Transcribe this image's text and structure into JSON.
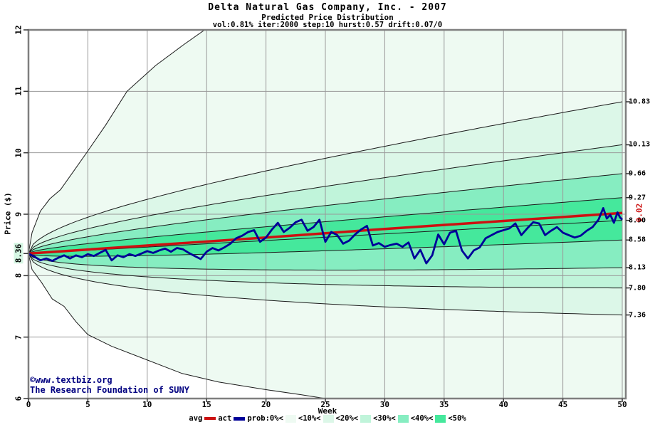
{
  "header": {
    "title": "Delta Natural Gas Company, Inc. - 2007",
    "subtitle": "Predicted Price Distribution",
    "params": "vol:0.81% iter:2000 step:10 hurst:0.57 drift:0.07/0"
  },
  "watermark": {
    "line1": "©www.textbiz.org",
    "line2": "The Research Foundation of SUNY",
    "color": "#000080"
  },
  "legend": {
    "avg_label": "avg",
    "act_label": "act",
    "prob_label": "prob:0%<",
    "thresholds": [
      "<10%<",
      "<20%<",
      "<30%<",
      "<40%<",
      "<50%"
    ],
    "avg_color": "#cc1111",
    "act_color": "#000099"
  },
  "chart_data": {
    "type": "line",
    "subtype": "monte-carlo-fan",
    "title": "Delta Natural Gas Company, Inc. - 2007",
    "xlabel": "Week",
    "ylabel": "Price ($)",
    "x_range": [
      0,
      50.3
    ],
    "y_range": [
      6,
      12
    ],
    "x_ticks": [
      0,
      5,
      10,
      15,
      20,
      25,
      30,
      35,
      40,
      45,
      50
    ],
    "y_ticks": [
      6,
      7,
      8,
      9,
      10,
      11,
      12
    ],
    "grid": true,
    "grid_color": "#999999",
    "border_color": "#7f7f7f",
    "curve_color": "#1b1b1b",
    "start_price": 8.36,
    "start_price_label": "8.36",
    "median_end": 8.9,
    "band_exponent": 0.5,
    "bands": {
      "upper_ends": [
        9.27,
        9.66,
        10.13,
        10.83
      ],
      "lower_ends": [
        8.58,
        8.13,
        7.8,
        7.36
      ],
      "max_points": [
        [
          0,
          8.36
        ],
        [
          0.3,
          8.7
        ],
        [
          1,
          9.05
        ],
        [
          1.8,
          9.25
        ],
        [
          2.7,
          9.4
        ],
        [
          3.8,
          9.7
        ],
        [
          5,
          10.03
        ],
        [
          6.5,
          10.45
        ],
        [
          8.3,
          11.0
        ],
        [
          10.7,
          11.42
        ],
        [
          13,
          11.75
        ],
        [
          15.2,
          12.05
        ],
        [
          50.3,
          16.0
        ]
      ],
      "min_points": [
        [
          0,
          8.36
        ],
        [
          0.3,
          8.1
        ],
        [
          1.1,
          7.89
        ],
        [
          2,
          7.62
        ],
        [
          3,
          7.5
        ],
        [
          4,
          7.25
        ],
        [
          5,
          7.04
        ],
        [
          7,
          6.85
        ],
        [
          10.1,
          6.62
        ],
        [
          12.9,
          6.41
        ],
        [
          16,
          6.27
        ],
        [
          19.8,
          6.15
        ],
        [
          23,
          6.06
        ],
        [
          26,
          5.97
        ],
        [
          50.3,
          5.3
        ]
      ],
      "colors_outer_to_inner": [
        "#eefaf2",
        "#dcf7e8",
        "#c0f4da",
        "#86edc1",
        "#45e89c"
      ],
      "right_labels": [
        10.83,
        10.13,
        9.66,
        9.27,
        8.9,
        8.58,
        8.13,
        7.8,
        7.36
      ]
    },
    "avg": {
      "label": "avg",
      "color": "#cc1111",
      "end_label": "9.02",
      "points": [
        [
          0,
          8.36
        ],
        [
          10,
          8.49
        ],
        [
          20,
          8.62
        ],
        [
          30,
          8.76
        ],
        [
          40,
          8.89
        ],
        [
          50,
          9.02
        ]
      ]
    },
    "act": {
      "label": "act",
      "color": "#000099",
      "points": [
        [
          0,
          8.36
        ],
        [
          0.5,
          8.31
        ],
        [
          1,
          8.25
        ],
        [
          1.5,
          8.28
        ],
        [
          2,
          8.24
        ],
        [
          2.5,
          8.29
        ],
        [
          3,
          8.33
        ],
        [
          3.5,
          8.28
        ],
        [
          4,
          8.33
        ],
        [
          4.5,
          8.3
        ],
        [
          5,
          8.35
        ],
        [
          5.5,
          8.32
        ],
        [
          6,
          8.37
        ],
        [
          6.5,
          8.42
        ],
        [
          7,
          8.25
        ],
        [
          7.5,
          8.33
        ],
        [
          8,
          8.3
        ],
        [
          8.5,
          8.35
        ],
        [
          9,
          8.32
        ],
        [
          9.5,
          8.36
        ],
        [
          10,
          8.4
        ],
        [
          10.5,
          8.37
        ],
        [
          11,
          8.41
        ],
        [
          11.5,
          8.44
        ],
        [
          12,
          8.39
        ],
        [
          12.5,
          8.45
        ],
        [
          13,
          8.43
        ],
        [
          13.5,
          8.37
        ],
        [
          14,
          8.32
        ],
        [
          14.5,
          8.27
        ],
        [
          15,
          8.39
        ],
        [
          15.5,
          8.45
        ],
        [
          16,
          8.41
        ],
        [
          16.5,
          8.46
        ],
        [
          17,
          8.52
        ],
        [
          17.5,
          8.61
        ],
        [
          18,
          8.65
        ],
        [
          18.5,
          8.71
        ],
        [
          19,
          8.74
        ],
        [
          19.5,
          8.55
        ],
        [
          20,
          8.62
        ],
        [
          20.5,
          8.75
        ],
        [
          21,
          8.86
        ],
        [
          21.5,
          8.71
        ],
        [
          22,
          8.78
        ],
        [
          22.5,
          8.87
        ],
        [
          23,
          8.91
        ],
        [
          23.5,
          8.73
        ],
        [
          24,
          8.79
        ],
        [
          24.5,
          8.91
        ],
        [
          25,
          8.55
        ],
        [
          25.5,
          8.71
        ],
        [
          26,
          8.66
        ],
        [
          26.5,
          8.52
        ],
        [
          27,
          8.57
        ],
        [
          27.5,
          8.67
        ],
        [
          28,
          8.75
        ],
        [
          28.5,
          8.81
        ],
        [
          29,
          8.49
        ],
        [
          29.5,
          8.53
        ],
        [
          30,
          8.47
        ],
        [
          30.5,
          8.5
        ],
        [
          31,
          8.52
        ],
        [
          31.5,
          8.47
        ],
        [
          32,
          8.54
        ],
        [
          32.5,
          8.28
        ],
        [
          33,
          8.42
        ],
        [
          33.5,
          8.2
        ],
        [
          34,
          8.33
        ],
        [
          34.5,
          8.67
        ],
        [
          35,
          8.51
        ],
        [
          35.5,
          8.7
        ],
        [
          36,
          8.73
        ],
        [
          36.5,
          8.41
        ],
        [
          37,
          8.28
        ],
        [
          37.5,
          8.41
        ],
        [
          38,
          8.46
        ],
        [
          38.5,
          8.61
        ],
        [
          39,
          8.66
        ],
        [
          39.5,
          8.71
        ],
        [
          40,
          8.74
        ],
        [
          40.5,
          8.77
        ],
        [
          41,
          8.85
        ],
        [
          41.5,
          8.66
        ],
        [
          42,
          8.77
        ],
        [
          42.5,
          8.87
        ],
        [
          43,
          8.85
        ],
        [
          43.5,
          8.66
        ],
        [
          44,
          8.73
        ],
        [
          44.5,
          8.79
        ],
        [
          45,
          8.7
        ],
        [
          45.5,
          8.66
        ],
        [
          46,
          8.62
        ],
        [
          46.5,
          8.65
        ],
        [
          47,
          8.73
        ],
        [
          47.5,
          8.79
        ],
        [
          48,
          8.91
        ],
        [
          48.4,
          9.1
        ],
        [
          48.7,
          8.93
        ],
        [
          49,
          8.99
        ],
        [
          49.3,
          8.86
        ],
        [
          49.6,
          9.03
        ],
        [
          49.8,
          8.95
        ],
        [
          50,
          8.91
        ]
      ]
    }
  }
}
